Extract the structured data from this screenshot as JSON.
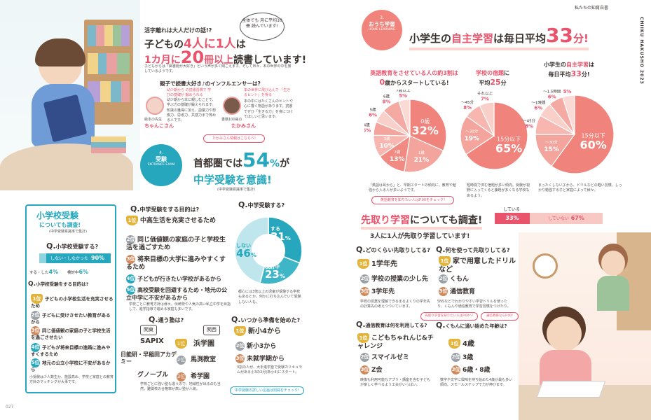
{
  "left": {
    "intro": {
      "kicker": "活字離れは大人だけの話!?",
      "line1a": "子どもの",
      "line1b": "4人に1人",
      "line1c": "は",
      "line2a": "1カ月に",
      "line2b": "20",
      "line2c": "冊以上",
      "line2d": "読書しています!",
      "bubble": "全体でも 月に平均10冊 読んでいます!",
      "body": "子どもからは「図書館が大好き」という声が多く聞こえます。そして日々、本の世界の中を旅しているようです。"
    },
    "influencer": {
      "title": "親子で読書大好き♪のインフルエンサーは?",
      "p1_tag": "幼少期から の読書習慣で 学びの基礎が 鍛められる",
      "p1_name": "ちゃんこ",
      "p1_sub": "絵本の先生",
      "p1_body": "幼少期から本に親しむことで、学ぶ力の基礎が鍛えられます。知識の獲得に加え、語彙力や想像力、思考力、共感力まで育める人です。",
      "p2_tag": "本の世界に飛び込んで 「生きるヒント」を得る",
      "p2_name": "たかみ",
      "p2_sub": "書籍100冊の",
      "p2_body": "本の中にはたくさんのヒントや心に響く物語があります。読書でぜひ「生きる力」を身につけてほしいと思います。",
      "link": "たかみさん情報はこちらへ!"
    },
    "exam": {
      "badge_num": "4.",
      "badge_label": "受験",
      "badge_en": "ENTRANCE EXAM",
      "h1a": "首都圏では",
      "h1b": "54",
      "h1c": "%",
      "h1d": "が",
      "h2": "中学受験を意識!",
      "note": "(中学受験意識率で集計)"
    },
    "sho": {
      "title": "小学校受験",
      "sub": "についても調査!",
      "note": "(中学受験意識率で集計)",
      "q1": "小学校受験する?",
      "bar_main": "しない・しなかった",
      "bar_main_val": "90%",
      "bar_s1": "する・した",
      "bar_s1_val": "4%",
      "bar_s2": "検討中",
      "bar_s2_val": "6%",
      "q2": "小学校受験をする目的は?",
      "ranks": [
        "子どもの小学校生活を充実させるため",
        "子どもに受けさせたい教育があるから",
        "同じ価値観の家庭の子と学校生活を過ごさせたい",
        "子どもが将来目標の進路に進みやすくするため",
        "地元の公立小学校に不安があるから"
      ],
      "rank_tags": [
        "1位",
        "2位",
        "3位",
        "4位",
        "5位"
      ],
      "footer": "小受験は少人数生か、施設高め、学校と家庭との教育方針のマッチングが大事です。"
    },
    "purpose": {
      "q": "中学受験をする目的は?",
      "ranks": [
        "中高生活を充実させるため",
        "同じ価値観の家庭の子と学校生活を過ごすため",
        "将来目標の大学に進みやすくするため",
        "子どもが行きたい学校があるから",
        "高校受験を回避するため・地元の公立中学に不安があるから"
      ],
      "rank_tags": [
        "1位",
        "2位",
        "3位",
        "4位",
        "5位"
      ],
      "note": "学校ごとに教育方針は様々。伝統校や人気の高い私立中学を目指して、進学指導で進める家庭も多いです。"
    },
    "donut": {
      "q": "中学受験する?",
      "segments": [
        {
          "label": "する",
          "value": 31
        },
        {
          "label": "検討中",
          "value": 23
        },
        {
          "label": "しない",
          "value": 46
        }
      ],
      "note": "都心には3倍以上の児童が受験する学校もあるとか。何かに打ち込んでいて受験しない人も。"
    },
    "juku": {
      "q": "通う塾は?",
      "tag1": "関東",
      "tag2": "関西",
      "kanto": [
        "SAPIX",
        "日能研・早稲田アカデミー",
        "グノーブル"
      ],
      "kansai": [
        "浜学園",
        "馬渕教室",
        "希学園"
      ],
      "note": "学校ごとに強い塾も違うので、地域性が出るのも当然。難関校の合格率が高い塾が人気。"
    },
    "start": {
      "q": "いつから準備を始めた?",
      "ranks": [
        "新小4から",
        "新小3から",
        "未就学期から"
      ],
      "note": "3割の人が、大手進学塾で受験カリキュラムがある小3の2月(新小4)にスタート。",
      "link": "中学受験の詳しい企画は別冊をチェック!"
    },
    "page_num": "027"
  },
  "right": {
    "header": "私たちの知育白書",
    "vertical": "CHIIKU HAKUSHO 2023",
    "study": {
      "badge_num": "3.",
      "badge_label": "おうち学習",
      "badge_en": "HOME LEARNING",
      "h_a": "小学生の",
      "h_b": "自主学習",
      "h_c": "は毎日平均",
      "h_d": "33",
      "h_e": "分!"
    },
    "pie1": {
      "title1": "英語教育をさせている人の約3割は",
      "title2": "0",
      "title3": "歳からスタートしている!",
      "labels": [
        "0歳",
        "1歳",
        "2歳",
        "3歳",
        "4歳",
        "5歳",
        "6歳",
        "7歳以上"
      ],
      "values": [
        32,
        21,
        13,
        10,
        6,
        6,
        8,
        5
      ],
      "note": "「英語は耳から」と、早期スタートの傾向に。教育や勉強から入る人が多いようです。",
      "link": "英語教育を知りたい人はP.00をチェック!"
    },
    "pie2": {
      "title1": "学校の宿題",
      "title2": "に",
      "title3": "平均",
      "title4": "25",
      "title5": "分",
      "labels": [
        "15分以下",
        "〜30分",
        "〜45分",
        "それ以上"
      ],
      "values": [
        65,
        19,
        8,
        7
      ],
      "note": "短時間で済む宿題が多い傾向。受験が視野に入ってくると課題が多くなる学校もあるよう。"
    },
    "pie3": {
      "title1": "小学生の",
      "title2": "自主学習",
      "title3": "は",
      "title4": "毎日平均",
      "title5": "33",
      "title6": "分!",
      "labels": [
        "15分以下",
        "〜30分",
        "〜45分",
        "〜1時間",
        "〜1.5時間",
        "それ以上"
      ],
      "values": [
        60,
        15,
        8,
        6,
        6,
        5
      ],
      "note": "まったくしない子から、ドリルなどの軽い習慣、しっかり勉強する子と家庭によって様々。"
    },
    "sakidori": {
      "title_a": "先取り学習",
      "title_b": "についても調査!",
      "bar_label_do": "している",
      "bar_do": "33%",
      "bar_not_label": "していない",
      "bar_not": "67%",
      "sub": "3人に1人が先取り学習しています!"
    },
    "q_how": {
      "q": "どのくらい先取りしてる?",
      "ranks": [
        "1学年先",
        "学校の授業の少し先",
        "3学年先"
      ],
      "note": "学校の授業を理解できるまるよくりの学年先の計算先の考えつついています。",
      "tags": [
        "1位",
        "2位",
        "3位"
      ]
    },
    "q_what": {
      "q": "何を使って先取りしてる?",
      "ranks": [
        "家で用意したドリルなど",
        "くもん",
        "通信教育"
      ],
      "note": "SNSなどでわかりやすい学習ドリルを使ったり、くもんや通信教育で学習習慣をつけたり。",
      "tags": [
        "1位",
        "2位",
        "3位"
      ],
      "link1": "先取り学習を知りたい人はP.00へ!",
      "link2": "通信教育ならP.00!"
    },
    "q_tsushin": {
      "q": "通信教育は何を利用してる?",
      "ranks": [
        "こどもちゃれんじ&チャレンジ",
        "スマイルゼミ",
        "Z会"
      ],
      "note": "映像も利用可能なアプリ・講座を含む子どもが楽しく学べるよう工夫がいっぱい。",
      "tags": [
        "1位",
        "2位",
        "3位"
      ]
    },
    "q_kumon": {
      "q": "くもんに通い始めた年齢は?",
      "ranks": [
        "4歳",
        "3歳",
        "6歳・8歳"
      ],
      "note": "数字や文字に興味を持ち始めた4歳が最も多い傾向。スモールステップで力が伸びます。",
      "tags": [
        "1位",
        "2位",
        "3位"
      ]
    }
  },
  "colors": {
    "pink": "#e9536b",
    "salmon": "#f0837b",
    "teal": "#27a7bd",
    "gold": "#e4b43a",
    "light_pink": "#fbe1df"
  }
}
